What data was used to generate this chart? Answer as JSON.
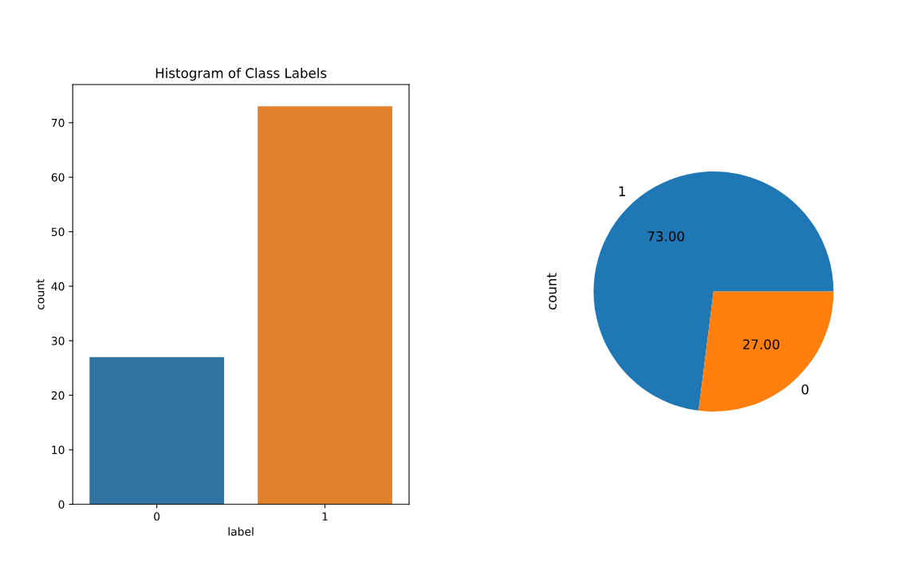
{
  "chart_data": [
    {
      "type": "bar",
      "title": "Histogram of Class Labels",
      "xlabel": "label",
      "ylabel": "count",
      "categories": [
        "0",
        "1"
      ],
      "values": [
        27,
        73
      ],
      "colors": [
        "#3274a1",
        "#e1812c"
      ],
      "ylim": [
        0,
        77
      ],
      "yticks": [
        0,
        10,
        20,
        30,
        40,
        50,
        60,
        70
      ],
      "grid": false
    },
    {
      "type": "pie",
      "ylabel": "count",
      "categories": [
        "1",
        "0"
      ],
      "values": [
        73,
        27
      ],
      "colors": [
        "#1f77b4",
        "#ff7f0e"
      ],
      "value_labels": [
        "73.00",
        "27.00"
      ]
    }
  ]
}
